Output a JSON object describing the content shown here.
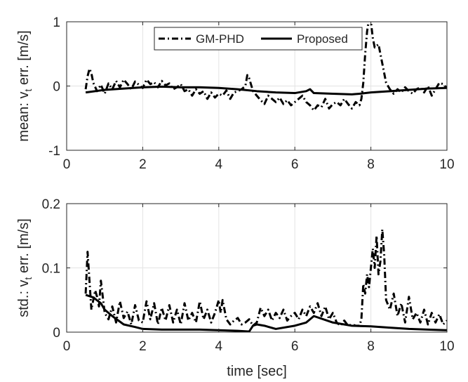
{
  "chart_data": [
    {
      "type": "line",
      "ylabel_main": "mean: v",
      "ylabel_sub": "t",
      "ylabel_rest": " err. [m/s]",
      "xlabel": "",
      "xlim": [
        0,
        10
      ],
      "ylim": [
        -1,
        1
      ],
      "x_ticks": [
        "0",
        "2",
        "4",
        "6",
        "8",
        "10"
      ],
      "y_ticks": [
        "-1",
        "0",
        "1"
      ],
      "grid": true,
      "legend": "top-right",
      "series": [
        {
          "name": "GM-PHD",
          "style": "dash-dot",
          "x": [
            0.5,
            0.55,
            0.6,
            0.65,
            0.7,
            0.8,
            0.9,
            1.0,
            1.1,
            1.2,
            1.3,
            1.4,
            1.5,
            1.6,
            1.7,
            1.8,
            1.9,
            2.0,
            2.1,
            2.2,
            2.3,
            2.4,
            2.5,
            2.6,
            2.7,
            2.8,
            2.9,
            3.0,
            3.1,
            3.2,
            3.3,
            3.4,
            3.5,
            3.6,
            3.7,
            3.8,
            3.9,
            4.0,
            4.1,
            4.2,
            4.3,
            4.4,
            4.5,
            4.6,
            4.7,
            4.75,
            4.8,
            4.9,
            5.0,
            5.1,
            5.2,
            5.3,
            5.4,
            5.5,
            5.6,
            5.7,
            5.8,
            5.9,
            6.0,
            6.1,
            6.2,
            6.3,
            6.4,
            6.5,
            6.6,
            6.7,
            6.8,
            6.9,
            7.0,
            7.1,
            7.2,
            7.3,
            7.4,
            7.5,
            7.6,
            7.7,
            7.75,
            7.8,
            7.85,
            7.9,
            7.95,
            8.0,
            8.05,
            8.1,
            8.2,
            8.3,
            8.4,
            8.5,
            8.6,
            8.7,
            8.8,
            8.9,
            9.0,
            9.1,
            9.2,
            9.3,
            9.4,
            9.5,
            9.6,
            9.7,
            9.8,
            9.9,
            10.0
          ],
          "y": [
            -0.05,
            0.15,
            0.27,
            0.2,
            0.05,
            -0.08,
            0.02,
            -0.12,
            0.04,
            -0.05,
            0.08,
            -0.02,
            0.1,
            0.03,
            -0.05,
            0.07,
            0.02,
            -0.03,
            0.1,
            0.03,
            0.06,
            -0.02,
            0.08,
            0.01,
            0.04,
            -0.05,
            -0.02,
            0.03,
            -0.08,
            -0.05,
            -0.15,
            -0.05,
            -0.12,
            -0.08,
            -0.2,
            -0.1,
            -0.18,
            -0.12,
            -0.15,
            -0.07,
            -0.2,
            -0.1,
            -0.08,
            -0.05,
            0.0,
            0.17,
            0.12,
            -0.08,
            -0.15,
            -0.22,
            -0.28,
            -0.15,
            -0.2,
            -0.25,
            -0.18,
            -0.28,
            -0.22,
            -0.3,
            -0.25,
            -0.2,
            -0.15,
            -0.25,
            -0.3,
            -0.38,
            -0.3,
            -0.33,
            -0.2,
            -0.35,
            -0.28,
            -0.25,
            -0.3,
            -0.2,
            -0.28,
            -0.35,
            -0.25,
            -0.3,
            -0.2,
            0.05,
            0.5,
            0.85,
            1.05,
            1.0,
            0.75,
            0.6,
            0.65,
            0.35,
            0.05,
            -0.05,
            -0.12,
            -0.05,
            -0.1,
            -0.02,
            -0.08,
            -0.12,
            -0.05,
            -0.02,
            -0.1,
            0.0,
            -0.15,
            -0.05,
            0.05,
            0.03,
            -0.03
          ]
        },
        {
          "name": "Proposed",
          "style": "solid",
          "x": [
            0.5,
            1.0,
            1.5,
            2.0,
            2.5,
            3.0,
            3.5,
            4.0,
            4.5,
            5.0,
            5.5,
            6.0,
            6.3,
            6.4,
            6.5,
            7.0,
            7.5,
            7.7,
            8.0,
            8.5,
            9.0,
            9.5,
            10.0
          ],
          "y": [
            -0.1,
            -0.06,
            -0.04,
            -0.02,
            -0.01,
            -0.02,
            -0.02,
            -0.03,
            -0.05,
            -0.08,
            -0.1,
            -0.11,
            -0.08,
            -0.05,
            -0.11,
            -0.12,
            -0.13,
            -0.12,
            -0.1,
            -0.08,
            -0.06,
            -0.04,
            -0.03
          ]
        }
      ]
    },
    {
      "type": "line",
      "ylabel_main": "std.: v",
      "ylabel_sub": "t",
      "ylabel_rest": " err. [m/s]",
      "xlabel": "time [sec]",
      "xlim": [
        0,
        10
      ],
      "ylim": [
        0,
        0.2
      ],
      "x_ticks": [
        "0",
        "2",
        "4",
        "6",
        "8",
        "10"
      ],
      "y_ticks": [
        "0",
        "0.1",
        "0.2"
      ],
      "grid": true,
      "series": [
        {
          "name": "GM-PHD",
          "style": "dash-dot",
          "x": [
            0.5,
            0.55,
            0.6,
            0.65,
            0.7,
            0.75,
            0.8,
            0.85,
            0.9,
            1.0,
            1.1,
            1.2,
            1.3,
            1.4,
            1.5,
            1.6,
            1.7,
            1.8,
            1.9,
            2.0,
            2.1,
            2.2,
            2.3,
            2.4,
            2.5,
            2.6,
            2.7,
            2.8,
            2.9,
            3.0,
            3.1,
            3.2,
            3.3,
            3.4,
            3.5,
            3.6,
            3.7,
            3.8,
            3.9,
            4.0,
            4.05,
            4.1,
            4.2,
            4.3,
            4.4,
            4.5,
            4.6,
            4.7,
            4.8,
            4.9,
            5.0,
            5.1,
            5.2,
            5.3,
            5.4,
            5.5,
            5.6,
            5.7,
            5.8,
            5.9,
            6.0,
            6.1,
            6.2,
            6.3,
            6.4,
            6.5,
            6.6,
            6.7,
            6.8,
            6.9,
            7.0,
            7.1,
            7.2,
            7.3,
            7.4,
            7.5,
            7.6,
            7.7,
            7.75,
            7.8,
            7.85,
            7.9,
            7.95,
            8.0,
            8.05,
            8.1,
            8.15,
            8.2,
            8.25,
            8.3,
            8.35,
            8.4,
            8.5,
            8.6,
            8.7,
            8.8,
            8.9,
            9.0,
            9.1,
            9.2,
            9.3,
            9.4,
            9.5,
            9.6,
            9.7,
            9.8,
            9.9,
            10.0
          ],
          "y": [
            0.06,
            0.125,
            0.08,
            0.035,
            0.05,
            0.065,
            0.055,
            0.04,
            0.08,
            0.03,
            0.02,
            0.04,
            0.015,
            0.048,
            0.022,
            0.032,
            0.012,
            0.042,
            0.018,
            0.015,
            0.048,
            0.02,
            0.045,
            0.012,
            0.038,
            0.018,
            0.042,
            0.015,
            0.035,
            0.012,
            0.045,
            0.018,
            0.03,
            0.015,
            0.048,
            0.02,
            0.035,
            0.015,
            0.03,
            0.05,
            0.03,
            0.05,
            0.02,
            0.012,
            0.018,
            0.022,
            0.012,
            0.015,
            0.02,
            0.01,
            0.015,
            0.038,
            0.025,
            0.035,
            0.018,
            0.03,
            0.022,
            0.035,
            0.018,
            0.025,
            0.03,
            0.02,
            0.035,
            0.025,
            0.04,
            0.03,
            0.045,
            0.025,
            0.04,
            0.02,
            0.03,
            0.015,
            0.01,
            0.018,
            0.01,
            0.012,
            0.01,
            0.01,
            0.02,
            0.075,
            0.06,
            0.09,
            0.07,
            0.1,
            0.13,
            0.1,
            0.15,
            0.09,
            0.11,
            0.16,
            0.12,
            0.05,
            0.035,
            0.06,
            0.025,
            0.045,
            0.015,
            0.055,
            0.02,
            0.03,
            0.015,
            0.035,
            0.012,
            0.03,
            0.015,
            0.028,
            0.012,
            0.018
          ]
        },
        {
          "name": "Proposed",
          "style": "solid",
          "x": [
            0.5,
            0.7,
            0.9,
            1.0,
            1.2,
            1.5,
            1.8,
            2.0,
            2.5,
            3.0,
            3.5,
            4.0,
            4.5,
            4.8,
            4.9,
            5.0,
            5.2,
            5.5,
            6.0,
            6.3,
            6.5,
            7.0,
            7.5,
            8.0,
            8.5,
            9.0,
            9.5,
            10.0
          ],
          "y": [
            0.058,
            0.054,
            0.045,
            0.035,
            0.025,
            0.012,
            0.008,
            0.005,
            0.004,
            0.004,
            0.004,
            0.003,
            0.002,
            0.001,
            0.01,
            0.012,
            0.01,
            0.005,
            0.01,
            0.015,
            0.025,
            0.015,
            0.01,
            0.009,
            0.007,
            0.005,
            0.004,
            0.003
          ]
        }
      ]
    }
  ]
}
